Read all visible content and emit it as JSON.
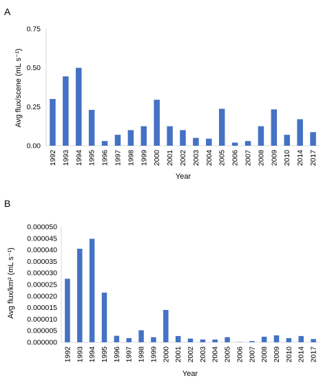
{
  "chart_data": [
    {
      "panel_label": "A",
      "type": "bar",
      "categories": [
        "1992",
        "1993",
        "1994",
        "1995",
        "1996",
        "1997",
        "1998",
        "1999",
        "2000",
        "2001",
        "2002",
        "2003",
        "2004",
        "2005",
        "2006",
        "2007",
        "2008",
        "2009",
        "2010",
        "2014",
        "2017"
      ],
      "values": [
        0.3,
        0.445,
        0.5,
        0.23,
        0.03,
        0.07,
        0.1,
        0.125,
        0.295,
        0.125,
        0.1,
        0.05,
        0.045,
        0.237,
        0.02,
        0.03,
        0.125,
        0.233,
        0.07,
        0.17,
        0.087
      ],
      "ylabel": "Avg flux/scene (mL s⁻¹)",
      "xlabel": "Year",
      "ylim": [
        0,
        0.75
      ],
      "yticks": [
        "0.00",
        "0.25",
        "0.50",
        "0.75"
      ],
      "color": "#4472C4",
      "grid": false
    },
    {
      "panel_label": "B",
      "type": "bar",
      "categories": [
        "1992",
        "1993",
        "1994",
        "1995",
        "1996",
        "1997",
        "1998",
        "1999",
        "2000",
        "2001",
        "2002",
        "2003",
        "2004",
        "2005",
        "2006",
        "2007",
        "2008",
        "2009",
        "2010",
        "2014",
        "2017"
      ],
      "values": [
        2.75e-05,
        4.05e-05,
        4.48e-05,
        2.15e-05,
        2.8e-06,
        1.8e-06,
        5.2e-06,
        2.2e-06,
        1.4e-05,
        2.7e-06,
        1.6e-06,
        1.2e-06,
        1.2e-06,
        2.2e-06,
        1e-07,
        5e-07,
        2.4e-06,
        3e-06,
        1.8e-06,
        2.7e-06,
        1.4e-06
      ],
      "ylabel": "Avg flux/km² (mL s⁻¹)",
      "xlabel": "Year",
      "ylim": [
        0,
        5e-05
      ],
      "yticks": [
        "0.000000",
        "0.000005",
        "0.000010",
        "0.000015",
        "0.000020",
        "0.000025",
        "0.000030",
        "0.000035",
        "0.000040",
        "0.000045",
        "0.000050"
      ],
      "color": "#4472C4",
      "grid": false
    }
  ]
}
